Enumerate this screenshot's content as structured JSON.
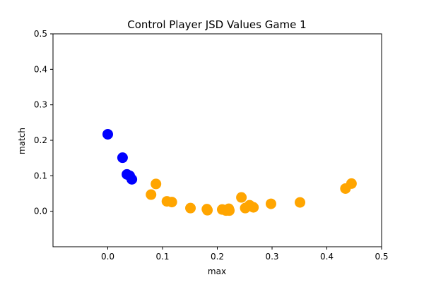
{
  "chart_data": {
    "type": "scatter",
    "title": "Control Player JSD Values Game 1",
    "xlabel": "max",
    "ylabel": "match",
    "xlim": [
      -0.1,
      0.5
    ],
    "ylim": [
      -0.1,
      0.5
    ],
    "x_ticks": [
      0.0,
      0.1,
      0.2,
      0.3,
      0.4,
      0.5
    ],
    "x_tick_labels": [
      "0.0",
      "0.1",
      "0.2",
      "0.3",
      "0.4",
      "0.5"
    ],
    "y_ticks": [
      0.0,
      0.1,
      0.2,
      0.3,
      0.4,
      0.5
    ],
    "y_tick_labels": [
      "0.0",
      "0.1",
      "0.2",
      "0.3",
      "0.4",
      "0.5"
    ],
    "grid": false,
    "series": [
      {
        "color": "#0000ff",
        "points": [
          {
            "x": 0.0,
            "y": 0.217
          },
          {
            "x": 0.027,
            "y": 0.151
          },
          {
            "x": 0.035,
            "y": 0.104
          },
          {
            "x": 0.04,
            "y": 0.1
          },
          {
            "x": 0.044,
            "y": 0.09
          }
        ]
      },
      {
        "color": "#ffa500",
        "points": [
          {
            "x": 0.079,
            "y": 0.047
          },
          {
            "x": 0.088,
            "y": 0.077
          },
          {
            "x": 0.108,
            "y": 0.028
          },
          {
            "x": 0.117,
            "y": 0.026
          },
          {
            "x": 0.151,
            "y": 0.009
          },
          {
            "x": 0.181,
            "y": 0.006
          },
          {
            "x": 0.182,
            "y": 0.003
          },
          {
            "x": 0.209,
            "y": 0.005
          },
          {
            "x": 0.216,
            "y": 0.002
          },
          {
            "x": 0.221,
            "y": 0.007
          },
          {
            "x": 0.222,
            "y": 0.002
          },
          {
            "x": 0.244,
            "y": 0.039
          },
          {
            "x": 0.251,
            "y": 0.009
          },
          {
            "x": 0.259,
            "y": 0.017
          },
          {
            "x": 0.266,
            "y": 0.011
          },
          {
            "x": 0.298,
            "y": 0.021
          },
          {
            "x": 0.351,
            "y": 0.025
          },
          {
            "x": 0.434,
            "y": 0.064
          },
          {
            "x": 0.445,
            "y": 0.078
          }
        ]
      }
    ]
  }
}
